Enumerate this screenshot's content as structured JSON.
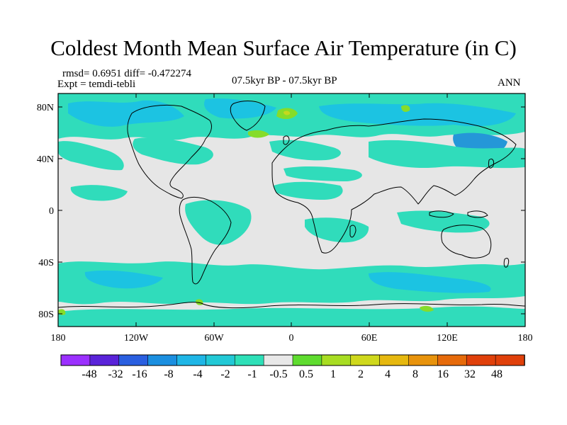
{
  "title": "Coldest Month Mean Surface Air Temperature (in C)",
  "stats": "rmsd= 0.6951 diff= -0.472274",
  "experiment": "Expt = temdi-tebli",
  "period": "07.5kyr BP - 07.5kyr BP",
  "season": "ANN",
  "lat_ticks": [
    "80N",
    "40N",
    "0",
    "40S",
    "80S"
  ],
  "lon_ticks": [
    "180",
    "120W",
    "60W",
    "0",
    "60E",
    "120E",
    "180"
  ],
  "colorbar": {
    "labels": [
      "-48",
      "-32",
      "-16",
      "-8",
      "-4",
      "-2",
      "-1",
      "-0.5",
      "0.5",
      "1",
      "2",
      "4",
      "8",
      "16",
      "32",
      "48"
    ],
    "colors": [
      "#9b30ff",
      "#5a23d9",
      "#2a5fe0",
      "#1b8fe0",
      "#1fb6e6",
      "#22c9d6",
      "#2ee0b8",
      "#e8e8e8",
      "#5fdc2f",
      "#a8dd22",
      "#cfd81c",
      "#e6b80f",
      "#e8930c",
      "#e66a0a",
      "#e0400a",
      "#e0400a"
    ]
  },
  "map_colors": {
    "background": "#e6e6e6",
    "teal": "#30dcbb",
    "cyan": "#1cc3e2",
    "blue": "#2597d8",
    "green": "#86dc2a",
    "yellow": "#c6d81d",
    "coast": "#000000"
  }
}
